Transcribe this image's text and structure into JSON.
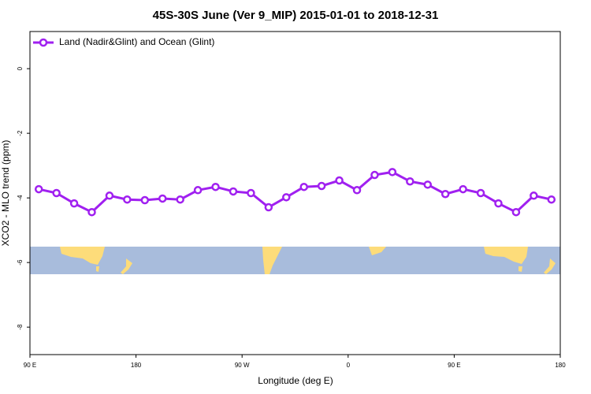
{
  "chart_data": {
    "type": "line",
    "title": "45S-30S June (Ver 9_MIP)   2015-01-01 to 2018-12-31",
    "x_label": "Longitude (deg E)",
    "y_label": "XCO2 - MLO trend (ppm)",
    "x": [
      97.5,
      112.5,
      127.5,
      142.5,
      157.5,
      172.5,
      187.5,
      202.5,
      217.5,
      232.5,
      247.5,
      262.5,
      277.5,
      292.5,
      307.5,
      322.5,
      337.5,
      352.5,
      367.5,
      382.5,
      397.5,
      412.5,
      427.5,
      442.5,
      457.5,
      472.5,
      487.5,
      502.5,
      517.5,
      532.5
    ],
    "series": [
      {
        "name": "Land (Nadir&Glint) and Ocean (Glint)",
        "color": "#a020f0",
        "values": [
          -3.73,
          -3.85,
          -4.17,
          -4.44,
          -3.93,
          -4.05,
          -4.07,
          -4.02,
          -4.05,
          -3.76,
          -3.66,
          -3.8,
          -3.85,
          -4.29,
          -3.98,
          -3.66,
          -3.63,
          -3.46,
          -3.76,
          -3.29,
          -3.2,
          -3.49,
          -3.59,
          -3.88,
          -3.73,
          -3.85,
          -4.17,
          -4.44,
          -3.93,
          -4.05
        ]
      }
    ],
    "xlim": [
      90,
      540
    ],
    "xticks": [
      {
        "value": 90,
        "label": "90 E"
      },
      {
        "value": 180,
        "label": "180"
      },
      {
        "value": 270,
        "label": "90 W"
      },
      {
        "value": 360,
        "label": "0"
      },
      {
        "value": 450,
        "label": "90 E"
      },
      {
        "value": 540,
        "label": "180"
      }
    ],
    "ylim": [
      -8.85,
      1.15
    ],
    "yticks": [
      0,
      -2,
      -4,
      -6,
      -8
    ],
    "legend": "top-left"
  }
}
